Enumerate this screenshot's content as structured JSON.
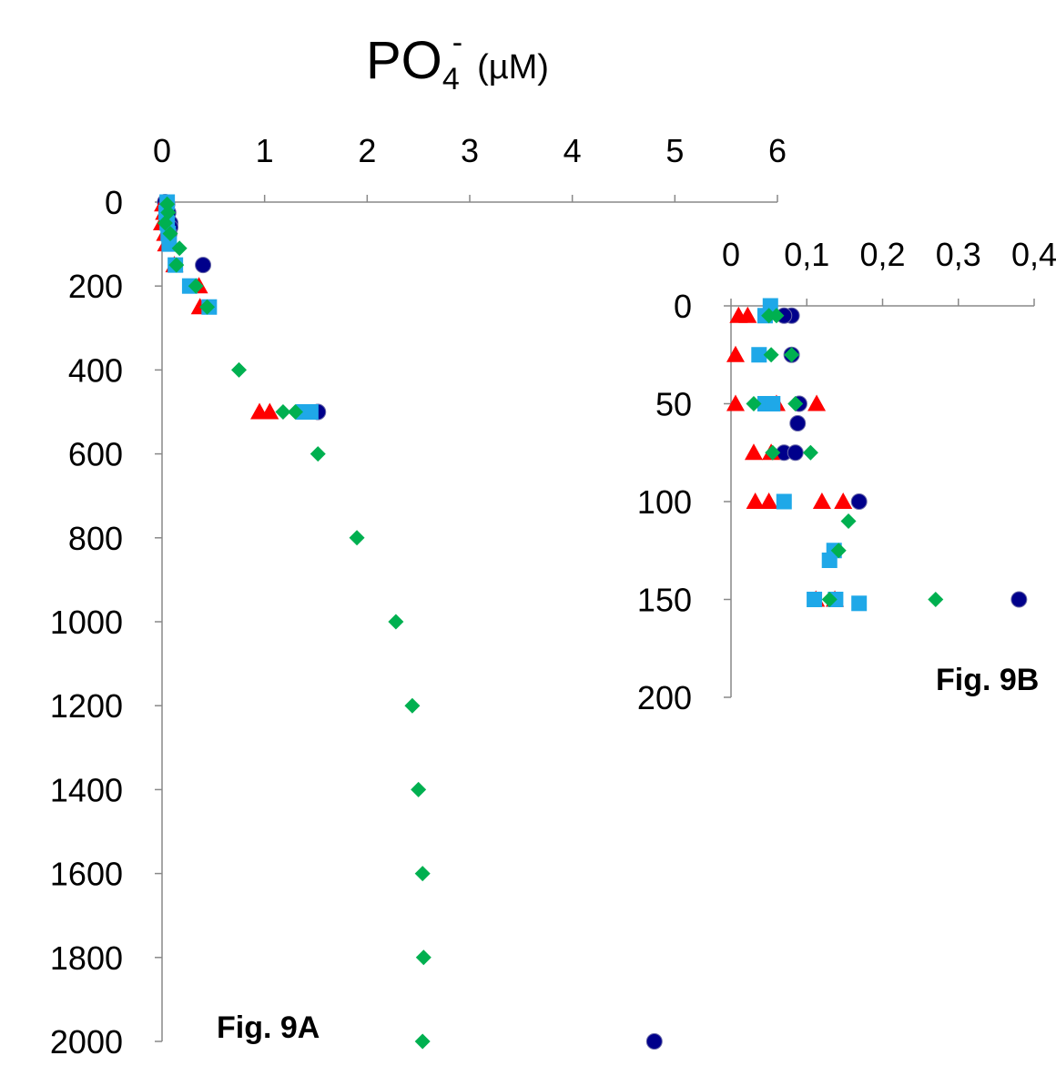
{
  "title": {
    "main": "PO",
    "sub": "4",
    "sup": "-",
    "unit": "(µM)"
  },
  "colors": {
    "circle": "#00008B",
    "triangle": "#FF0000",
    "square": "#1FA8E8",
    "diamond": "#00B050"
  },
  "chart_data": [
    {
      "id": "fig9a",
      "type": "scatter",
      "label": "Fig. 9A",
      "x_axis": {
        "position": "top",
        "ticks": [
          "0",
          "1",
          "2",
          "3",
          "4",
          "5",
          "6"
        ],
        "range": [
          0,
          6
        ]
      },
      "y_axis": {
        "inverted": true,
        "ticks": [
          "0",
          "200",
          "400",
          "600",
          "800",
          "1000",
          "1200",
          "1400",
          "1600",
          "1800",
          "2000"
        ],
        "range": [
          0,
          2000
        ]
      },
      "series": [
        {
          "marker": "circle",
          "points": [
            [
              0.03,
              0
            ],
            [
              0.05,
              5
            ],
            [
              0.06,
              25
            ],
            [
              0.08,
              50
            ],
            [
              0.08,
              60
            ],
            [
              0.07,
              75
            ],
            [
              0.4,
              150
            ],
            [
              1.52,
              500
            ],
            [
              4.8,
              2000
            ]
          ]
        },
        {
          "marker": "triangle",
          "points": [
            [
              0.01,
              5
            ],
            [
              0.02,
              25
            ],
            [
              0.0,
              50
            ],
            [
              0.03,
              75
            ],
            [
              0.04,
              100
            ],
            [
              0.12,
              150
            ],
            [
              0.36,
              200
            ],
            [
              0.37,
              250
            ],
            [
              0.95,
              500
            ],
            [
              1.05,
              500
            ]
          ]
        },
        {
          "marker": "square",
          "points": [
            [
              0.05,
              0
            ],
            [
              0.04,
              25
            ],
            [
              0.05,
              50
            ],
            [
              0.06,
              75
            ],
            [
              0.07,
              100
            ],
            [
              0.13,
              150
            ],
            [
              0.27,
              200
            ],
            [
              0.46,
              250
            ],
            [
              1.38,
              500
            ],
            [
              1.45,
              500
            ]
          ]
        },
        {
          "marker": "diamond",
          "points": [
            [
              0.05,
              5
            ],
            [
              0.06,
              25
            ],
            [
              0.03,
              50
            ],
            [
              0.08,
              75
            ],
            [
              0.17,
              110
            ],
            [
              0.14,
              150
            ],
            [
              0.33,
              200
            ],
            [
              0.44,
              250
            ],
            [
              0.75,
              400
            ],
            [
              1.18,
              500
            ],
            [
              1.3,
              500
            ],
            [
              1.52,
              600
            ],
            [
              1.9,
              800
            ],
            [
              2.28,
              1000
            ],
            [
              2.44,
              1200
            ],
            [
              2.5,
              1400
            ],
            [
              2.54,
              1600
            ],
            [
              2.55,
              1800
            ],
            [
              2.54,
              2000
            ]
          ]
        }
      ]
    },
    {
      "id": "fig9b",
      "type": "scatter",
      "label": "Fig. 9B",
      "x_axis": {
        "position": "top",
        "ticks": [
          "0",
          "0,1",
          "0,2",
          "0,3",
          "0,4"
        ],
        "range": [
          0,
          0.4
        ]
      },
      "y_axis": {
        "inverted": true,
        "ticks": [
          "0",
          "50",
          "100",
          "150",
          "200"
        ],
        "range": [
          0,
          200
        ]
      },
      "series": [
        {
          "marker": "circle",
          "points": [
            [
              0.08,
              5
            ],
            [
              0.07,
              5
            ],
            [
              0.08,
              25
            ],
            [
              0.09,
              50
            ],
            [
              0.088,
              60
            ],
            [
              0.07,
              75
            ],
            [
              0.085,
              75
            ],
            [
              0.169,
              100
            ],
            [
              0.38,
              150
            ]
          ]
        },
        {
          "marker": "triangle",
          "points": [
            [
              0.01,
              5
            ],
            [
              0.022,
              5
            ],
            [
              0.006,
              25
            ],
            [
              0.006,
              50
            ],
            [
              0.06,
              50
            ],
            [
              0.113,
              50
            ],
            [
              0.03,
              75
            ],
            [
              0.053,
              75
            ],
            [
              0.032,
              100
            ],
            [
              0.05,
              100
            ],
            [
              0.12,
              100
            ],
            [
              0.148,
              100
            ],
            [
              0.112,
              150
            ],
            [
              0.137,
              150
            ]
          ]
        },
        {
          "marker": "square",
          "points": [
            [
              0.052,
              0
            ],
            [
              0.045,
              5
            ],
            [
              0.037,
              25
            ],
            [
              0.045,
              50
            ],
            [
              0.055,
              50
            ],
            [
              0.07,
              100
            ],
            [
              0.136,
              125
            ],
            [
              0.13,
              130
            ],
            [
              0.11,
              150
            ],
            [
              0.138,
              150
            ],
            [
              0.169,
              152
            ]
          ]
        },
        {
          "marker": "diamond",
          "points": [
            [
              0.05,
              5
            ],
            [
              0.06,
              5
            ],
            [
              0.053,
              25
            ],
            [
              0.08,
              25
            ],
            [
              0.03,
              50
            ],
            [
              0.085,
              50
            ],
            [
              0.055,
              75
            ],
            [
              0.105,
              75
            ],
            [
              0.155,
              110
            ],
            [
              0.142,
              125
            ],
            [
              0.13,
              150
            ],
            [
              0.27,
              150
            ]
          ]
        }
      ]
    }
  ]
}
